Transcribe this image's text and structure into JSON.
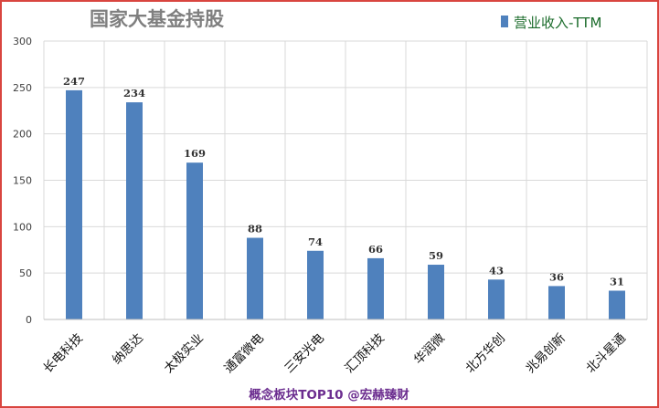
{
  "chart_data": {
    "type": "bar",
    "title": "国家大基金持股",
    "categories": [
      "长电科技",
      "纳思达",
      "太极实业",
      "通富微电",
      "三安光电",
      "汇顶科技",
      "华润微",
      "北方华创",
      "兆易创新",
      "北斗星通"
    ],
    "series": [
      {
        "name": "营业收入-TTM",
        "values": [
          247,
          234,
          169,
          88,
          74,
          66,
          59,
          43,
          36,
          31
        ],
        "color": "#4f81bd"
      }
    ],
    "xlabel": "",
    "ylabel": "",
    "ylim": [
      0,
      300
    ],
    "yticks": [
      0,
      50,
      100,
      150,
      200,
      250,
      300
    ],
    "grid": true,
    "legend_position": "top-right"
  },
  "footer": "概念板块TOP10 @宏赫臻财",
  "colors": {
    "frame": "#d9453f",
    "bar": "#4f81bd",
    "legend_text": "#1a6b2a",
    "footer": "#6b2d8f"
  }
}
